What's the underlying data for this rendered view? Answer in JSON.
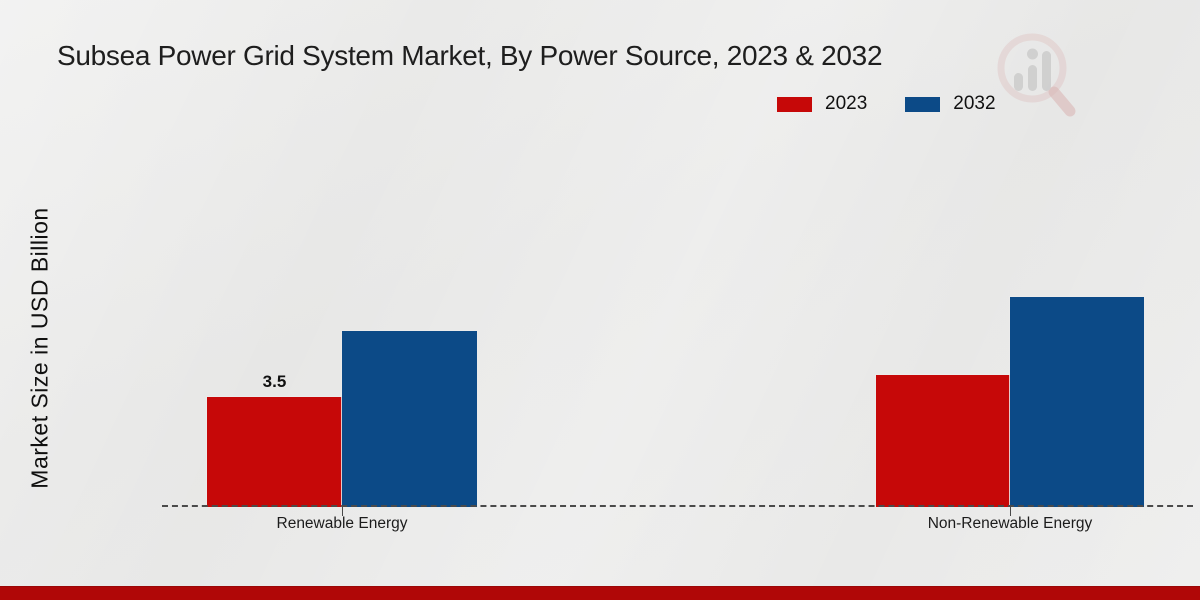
{
  "page": {
    "background_color": "#e9e9e8",
    "footer_band_color": "#b00707"
  },
  "header": {
    "title": "Subsea Power Grid System Market, By Power Source, 2023 & 2032"
  },
  "watermark": {
    "icon": "magnifier-bar-chart-logo",
    "ring_color": "#d9b0b0",
    "bar_color": "#bdbdbd",
    "handle_color": "#cf8f8f"
  },
  "chart_data": {
    "type": "bar",
    "title": "Subsea Power Grid System Market, By Power Source, 2023 & 2032",
    "categories": [
      "Renewable Energy",
      "Non-Renewable Energy"
    ],
    "series": [
      {
        "name": "2023",
        "color": "#c60808",
        "values": [
          3.5,
          4.2
        ],
        "data_labels": [
          "3.5",
          ""
        ]
      },
      {
        "name": "2032",
        "color": "#0c4a87",
        "values": [
          5.6,
          6.7
        ],
        "data_labels": [
          "",
          ""
        ]
      }
    ],
    "xlabel": "",
    "ylabel": "Market Size in USD Billion",
    "ylim": [
      0,
      7.5
    ],
    "grid": false,
    "legend_position": "top-right",
    "baseline_style": "dashed",
    "y_axis_ticks_visible": false
  }
}
